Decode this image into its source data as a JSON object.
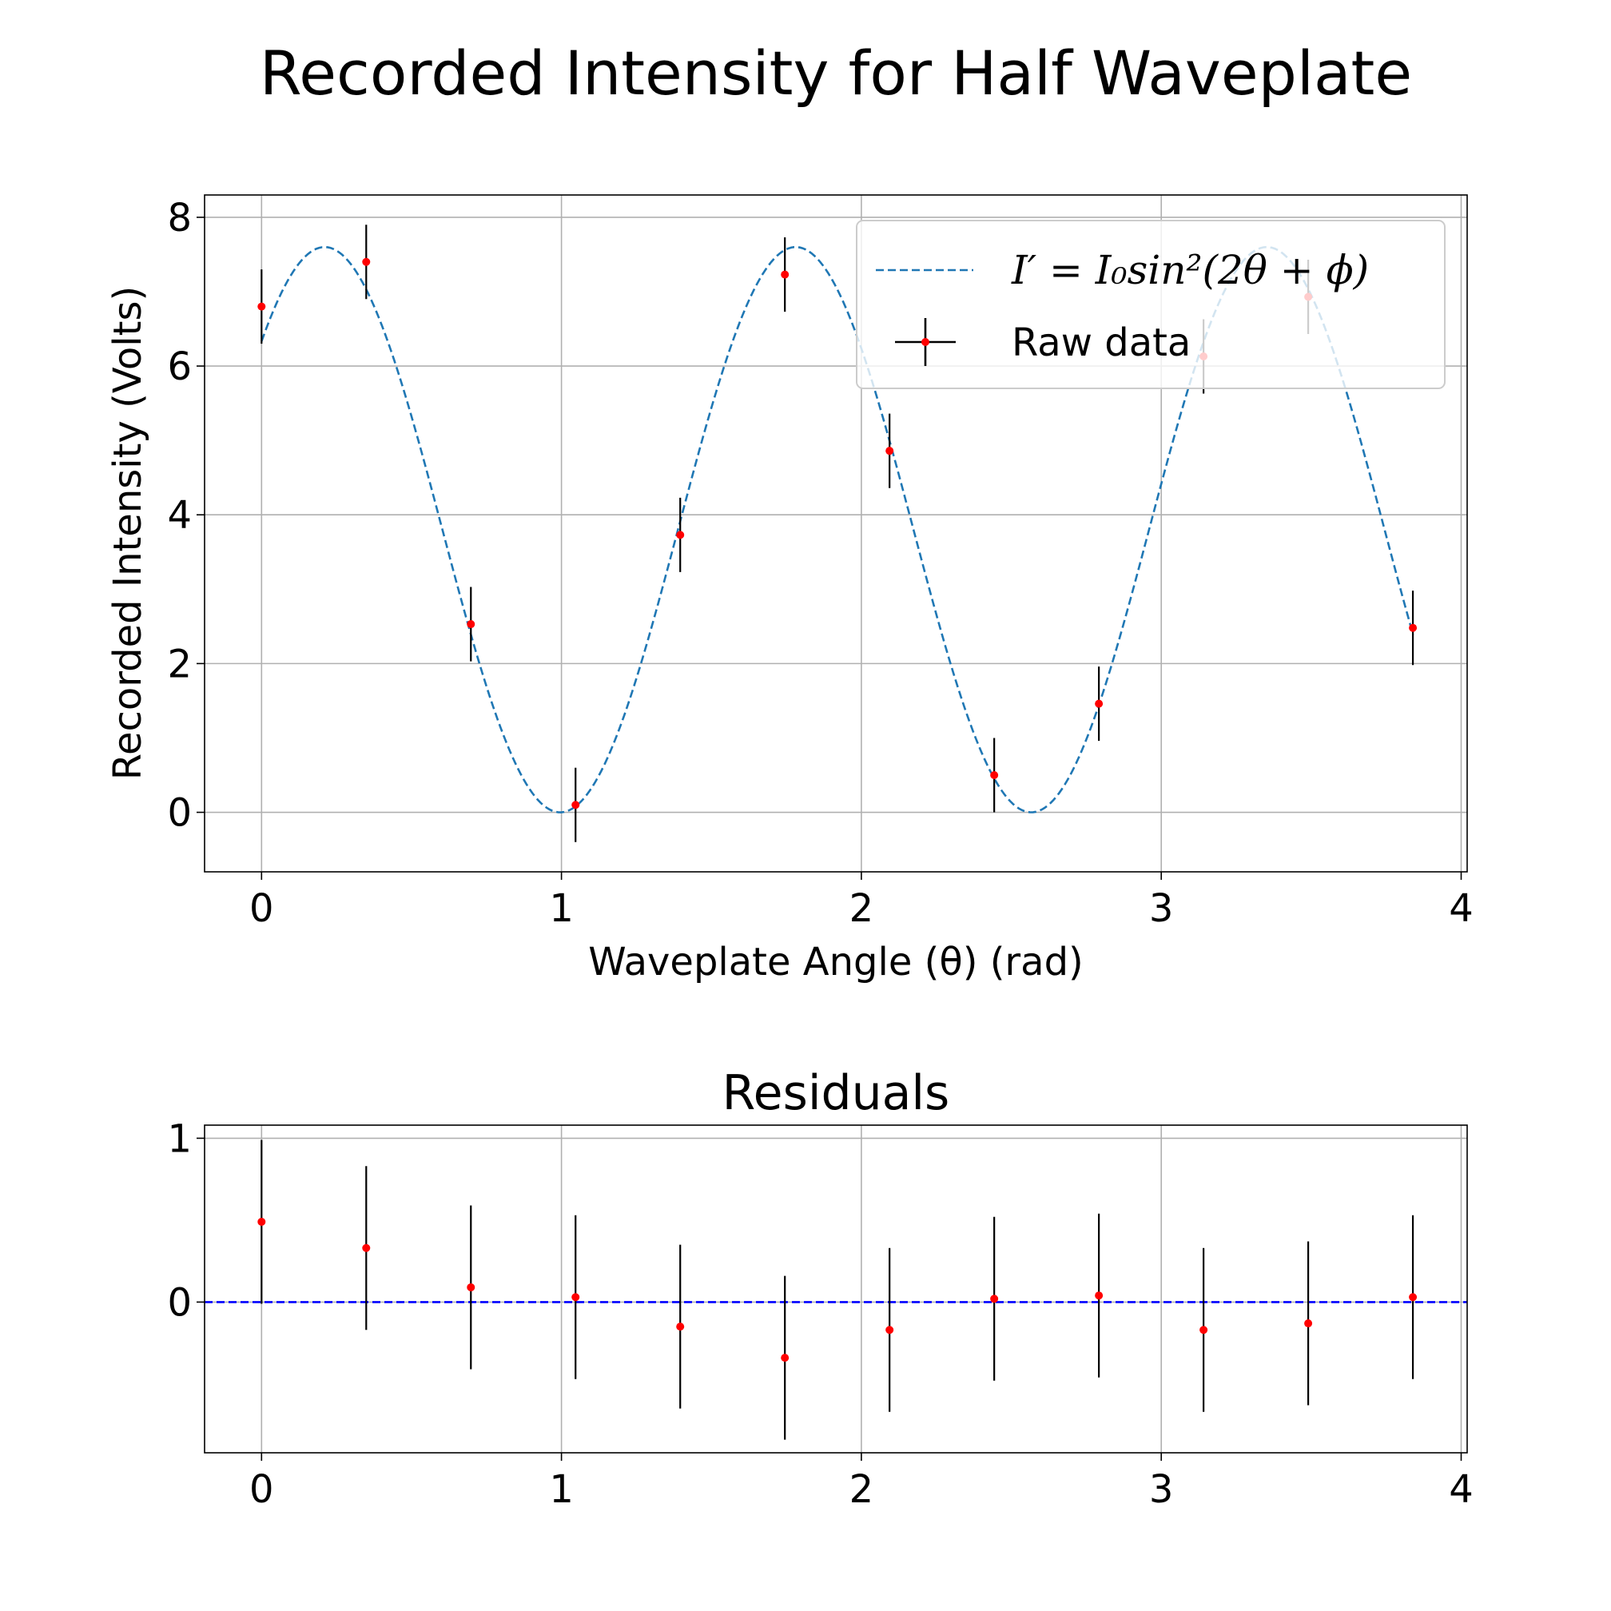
{
  "chart_data": [
    {
      "type": "scatter",
      "title": "Recorded Intensity for Half Waveplate",
      "xlabel": "Waveplate Angle (θ) (rad)",
      "ylabel": "Recorded Intensity (Volts)",
      "xlim": [
        -0.19,
        4.02
      ],
      "ylim": [
        -0.8,
        8.3
      ],
      "xticks": [
        "0",
        "1",
        "2",
        "3",
        "4"
      ],
      "yticks": [
        "0",
        "2",
        "4",
        "6",
        "8"
      ],
      "grid": true,
      "legend_position": "top-right",
      "fit": {
        "label": "I′ = I₀sin²(2θ + ϕ)",
        "I0": 7.6,
        "phi": 1.15,
        "x_range": [
          0,
          3.84
        ],
        "color": "#1f77b4"
      },
      "series": [
        {
          "name": "Raw data",
          "x": [
            0.0,
            0.349,
            0.698,
            1.047,
            1.396,
            1.745,
            2.094,
            2.443,
            2.792,
            3.141,
            3.49,
            3.839
          ],
          "y": [
            6.8,
            7.4,
            2.53,
            0.1,
            3.73,
            7.23,
            4.86,
            0.5,
            1.46,
            6.13,
            6.93,
            2.48
          ],
          "yerr": 0.5,
          "marker_color": "#ff0000",
          "errorbar_color": "#000000"
        }
      ]
    },
    {
      "type": "scatter",
      "title": "Residuals",
      "xlim": [
        -0.19,
        4.02
      ],
      "ylim": [
        -0.92,
        1.08
      ],
      "xticks": [
        "0",
        "1",
        "2",
        "3",
        "4"
      ],
      "yticks": [
        "0",
        "1"
      ],
      "grid": true,
      "zero_line_color": "#0000ff",
      "series": [
        {
          "x": [
            0.0,
            0.349,
            0.698,
            1.047,
            1.396,
            1.745,
            2.094,
            2.443,
            2.792,
            3.141,
            3.49,
            3.839
          ],
          "y": [
            0.49,
            0.33,
            0.09,
            0.03,
            -0.15,
            -0.34,
            -0.17,
            0.02,
            0.04,
            -0.17,
            -0.13,
            0.03
          ],
          "yerr": 0.5,
          "marker_color": "#ff0000",
          "errorbar_color": "#000000"
        }
      ]
    }
  ]
}
